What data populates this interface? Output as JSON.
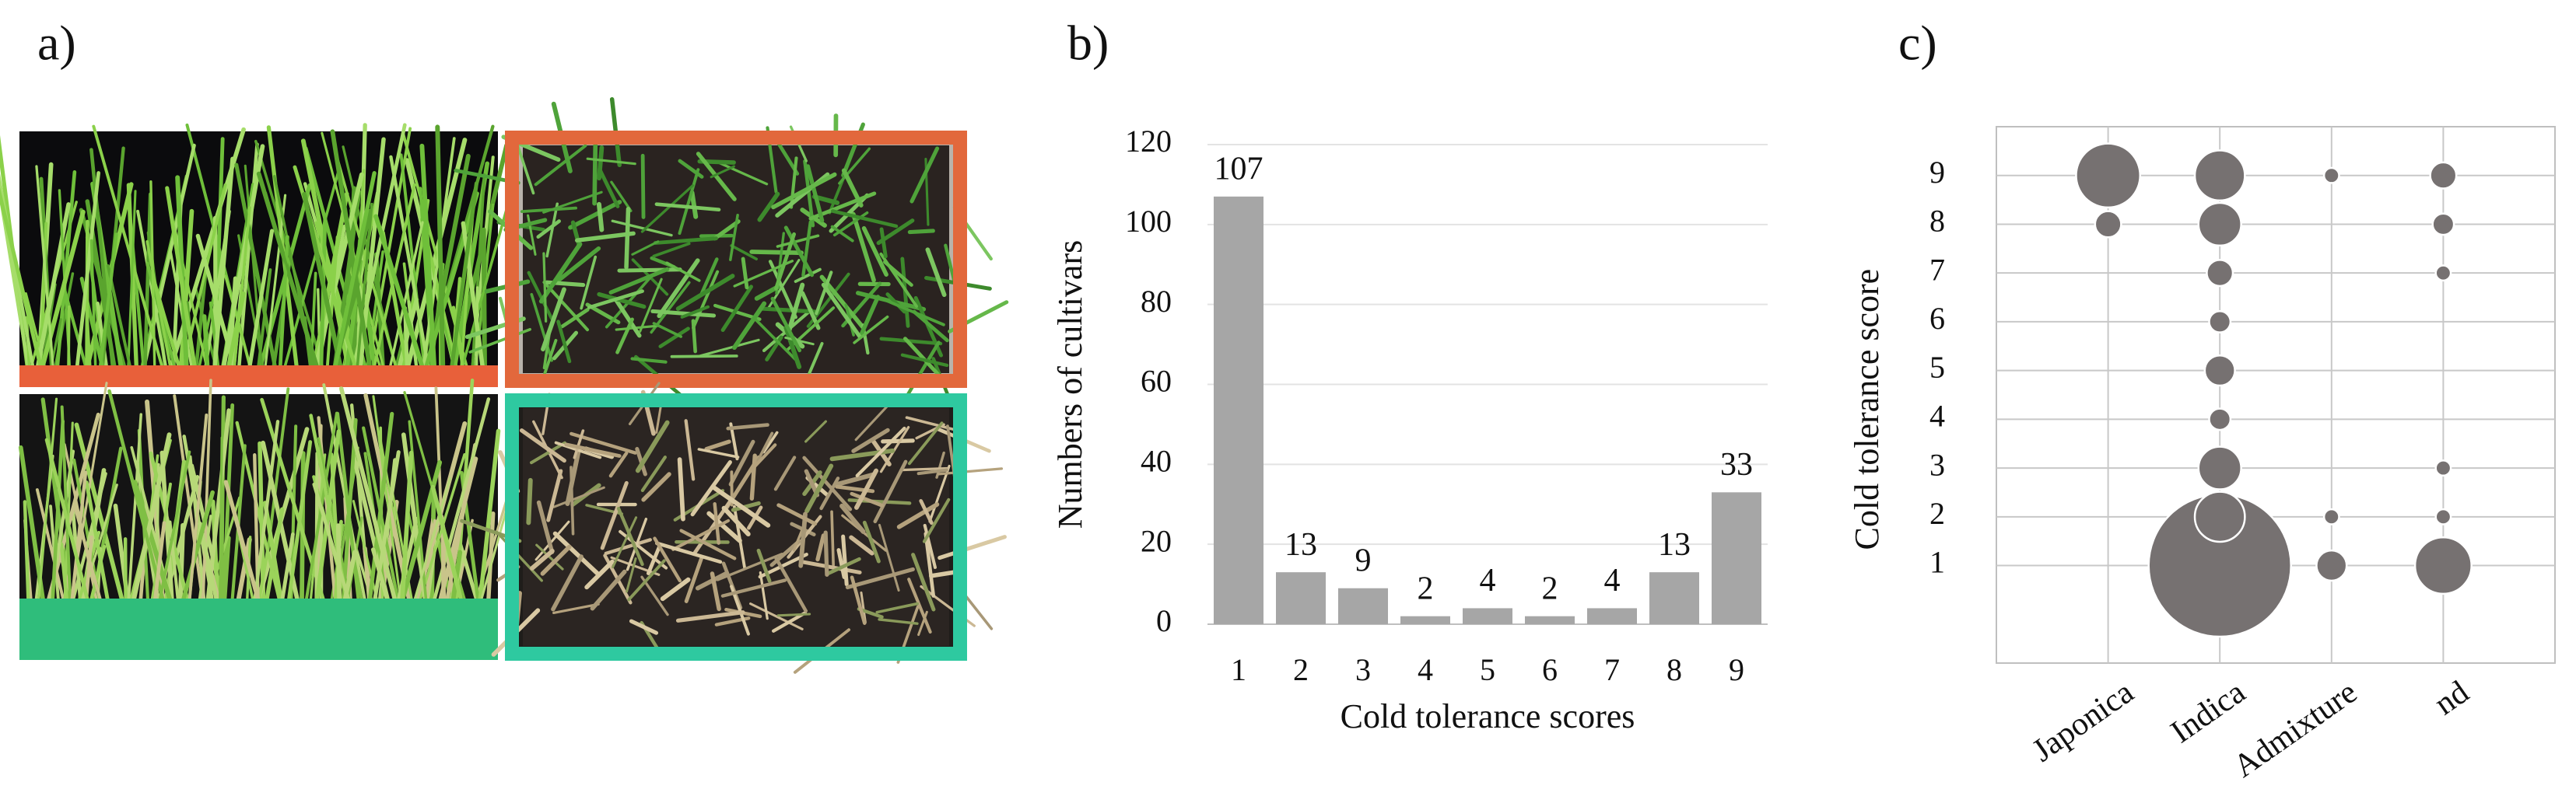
{
  "panel_a": {
    "label": "a)"
  },
  "chart_data": [
    {
      "type": "bar",
      "panel_label": "b)",
      "xlabel": "Cold tolerance scores",
      "ylabel": "Numbers of cultivars",
      "categories": [
        "1",
        "2",
        "3",
        "4",
        "5",
        "6",
        "7",
        "8",
        "9"
      ],
      "values": [
        107,
        13,
        9,
        2,
        4,
        2,
        4,
        13,
        33
      ],
      "color": "#a6a6a6",
      "ylim": [
        0,
        120
      ],
      "yticks": [
        0,
        20,
        40,
        60,
        80,
        100,
        120
      ],
      "grid": true
    },
    {
      "type": "bubble",
      "panel_label": "c)",
      "ylabel": "Cold tolerance score",
      "series": [
        {
          "name": "Japonica",
          "y": [
            9,
            8
          ],
          "size": [
            18,
            3
          ]
        },
        {
          "name": "Indica",
          "y": [
            9,
            8,
            7,
            6,
            5,
            4,
            3,
            1,
            2
          ],
          "size": [
            11,
            8,
            3,
            2,
            4,
            2,
            8,
            89,
            11
          ]
        },
        {
          "name": "Admixture",
          "y": [
            9,
            2,
            1
          ],
          "size": [
            1,
            1,
            4
          ]
        },
        {
          "name": "nd",
          "y": [
            9,
            8,
            7,
            3,
            2,
            1
          ],
          "size": [
            3,
            2,
            1,
            1,
            1,
            14
          ]
        }
      ],
      "color": "#767171",
      "edgecolor": "#ffffff",
      "ylim": [
        -1,
        10
      ],
      "yticks": [
        1,
        2,
        3,
        4,
        5,
        6,
        7,
        8,
        9
      ],
      "grid": true
    }
  ]
}
